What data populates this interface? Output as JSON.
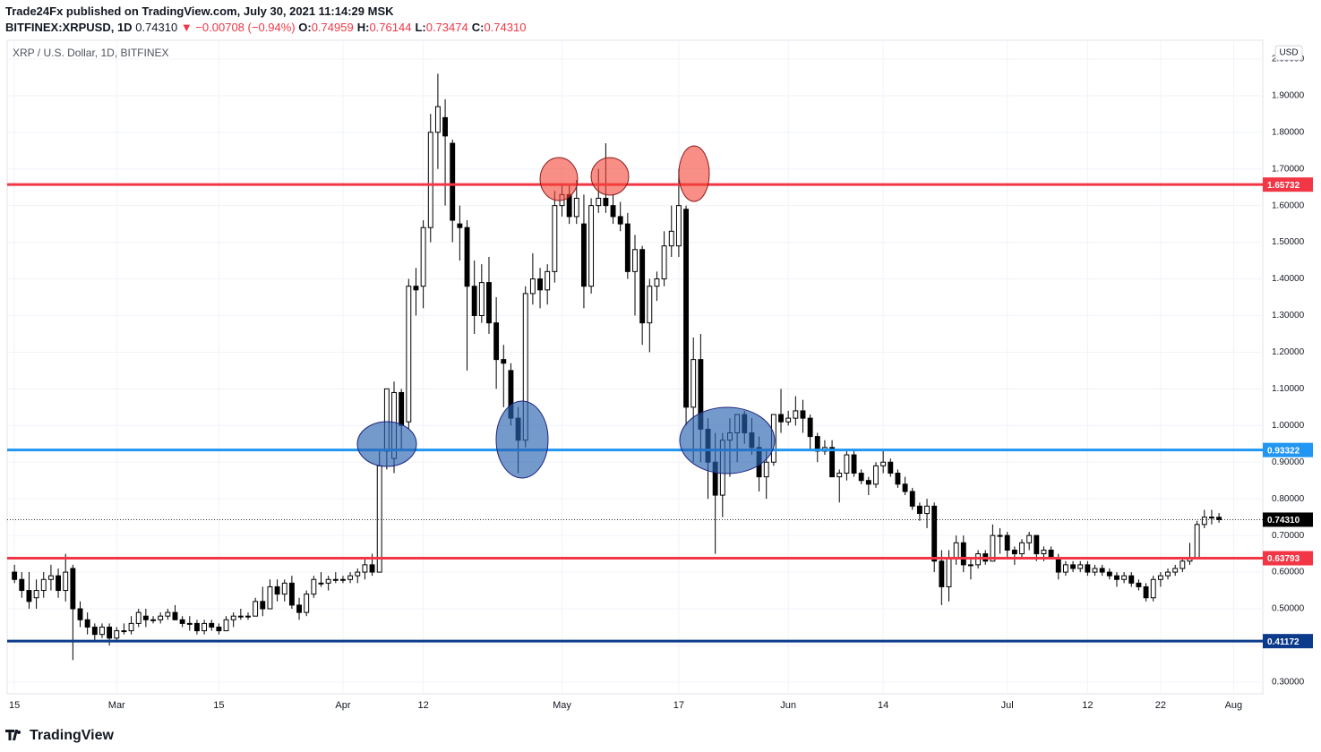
{
  "header": {
    "publisher": "Trade24Fx published on TradingView.com, July 30, 2021 11:14:29 MSK",
    "symbol": "BITFINEX:XRPUSD, 1D",
    "last": "0.74310",
    "arrow": "▼",
    "change": "−0.00708 (−0.94%)",
    "ohlc": [
      [
        "O:",
        "0.74959"
      ],
      [
        "H:",
        "0.76144"
      ],
      [
        "L:",
        "0.73474"
      ],
      [
        "C:",
        "0.74310"
      ]
    ]
  },
  "chart_data": {
    "type": "candlestick",
    "title": "XRP / U.S. Dollar, 1D, BITFINEX",
    "currency": "USD",
    "up_color": "#ffffff",
    "down_color": "#000000",
    "grid": true,
    "x": [
      "2021-02-15",
      "2021-02-16",
      "2021-02-17",
      "2021-02-18",
      "2021-02-19",
      "2021-02-20",
      "2021-02-21",
      "2021-02-22",
      "2021-02-23",
      "2021-02-24",
      "2021-02-25",
      "2021-02-26",
      "2021-02-27",
      "2021-02-28",
      "2021-03-01",
      "2021-03-02",
      "2021-03-03",
      "2021-03-04",
      "2021-03-05",
      "2021-03-06",
      "2021-03-07",
      "2021-03-08",
      "2021-03-09",
      "2021-03-10",
      "2021-03-11",
      "2021-03-12",
      "2021-03-13",
      "2021-03-14",
      "2021-03-15",
      "2021-03-16",
      "2021-03-17",
      "2021-03-18",
      "2021-03-19",
      "2021-03-20",
      "2021-03-21",
      "2021-03-22",
      "2021-03-23",
      "2021-03-24",
      "2021-03-25",
      "2021-03-26",
      "2021-03-27",
      "2021-03-28",
      "2021-03-29",
      "2021-03-30",
      "2021-03-31",
      "2021-04-01",
      "2021-04-02",
      "2021-04-03",
      "2021-04-04",
      "2021-04-05",
      "2021-04-06",
      "2021-04-07",
      "2021-04-08",
      "2021-04-09",
      "2021-04-10",
      "2021-04-11",
      "2021-04-12",
      "2021-04-13",
      "2021-04-14",
      "2021-04-15",
      "2021-04-16",
      "2021-04-17",
      "2021-04-18",
      "2021-04-19",
      "2021-04-20",
      "2021-04-21",
      "2021-04-22",
      "2021-04-23",
      "2021-04-24",
      "2021-04-25",
      "2021-04-26",
      "2021-04-27",
      "2021-04-28",
      "2021-04-29",
      "2021-04-30",
      "2021-05-01",
      "2021-05-02",
      "2021-05-03",
      "2021-05-04",
      "2021-05-05",
      "2021-05-06",
      "2021-05-07",
      "2021-05-08",
      "2021-05-09",
      "2021-05-10",
      "2021-05-11",
      "2021-05-12",
      "2021-05-13",
      "2021-05-14",
      "2021-05-15",
      "2021-05-16",
      "2021-05-17",
      "2021-05-18",
      "2021-05-19",
      "2021-05-20",
      "2021-05-21",
      "2021-05-22",
      "2021-05-23",
      "2021-05-24",
      "2021-05-25",
      "2021-05-26",
      "2021-05-27",
      "2021-05-28",
      "2021-05-29",
      "2021-05-30",
      "2021-05-31",
      "2021-06-01",
      "2021-06-02",
      "2021-06-03",
      "2021-06-04",
      "2021-06-05",
      "2021-06-06",
      "2021-06-07",
      "2021-06-08",
      "2021-06-09",
      "2021-06-10",
      "2021-06-11",
      "2021-06-12",
      "2021-06-13",
      "2021-06-14",
      "2021-06-15",
      "2021-06-16",
      "2021-06-17",
      "2021-06-18",
      "2021-06-19",
      "2021-06-20",
      "2021-06-21",
      "2021-06-22",
      "2021-06-23",
      "2021-06-24",
      "2021-06-25",
      "2021-06-26",
      "2021-06-27",
      "2021-06-28",
      "2021-06-29",
      "2021-06-30",
      "2021-07-01",
      "2021-07-02",
      "2021-07-03",
      "2021-07-04",
      "2021-07-05",
      "2021-07-06",
      "2021-07-07",
      "2021-07-08",
      "2021-07-09",
      "2021-07-10",
      "2021-07-11",
      "2021-07-12",
      "2021-07-13",
      "2021-07-14",
      "2021-07-15",
      "2021-07-16",
      "2021-07-17",
      "2021-07-18",
      "2021-07-19",
      "2021-07-20",
      "2021-07-21",
      "2021-07-22",
      "2021-07-23",
      "2021-07-24",
      "2021-07-25",
      "2021-07-26",
      "2021-07-27",
      "2021-07-28",
      "2021-07-29",
      "2021-07-30"
    ],
    "open": [
      0.6,
      0.58,
      0.55,
      0.53,
      0.55,
      0.58,
      0.59,
      0.55,
      0.61,
      0.5,
      0.47,
      0.45,
      0.43,
      0.45,
      0.42,
      0.44,
      0.44,
      0.46,
      0.48,
      0.47,
      0.47,
      0.48,
      0.49,
      0.47,
      0.46,
      0.46,
      0.44,
      0.46,
      0.45,
      0.44,
      0.47,
      0.48,
      0.48,
      0.48,
      0.52,
      0.5,
      0.56,
      0.54,
      0.57,
      0.51,
      0.49,
      0.54,
      0.57,
      0.57,
      0.58,
      0.58,
      0.58,
      0.59,
      0.6,
      0.62,
      0.6,
      0.93,
      0.91,
      1.09,
      1.01,
      1.38,
      1.38,
      1.54,
      1.8,
      1.84,
      1.77,
      1.55,
      1.54,
      1.38,
      1.3,
      1.39,
      1.28,
      1.18,
      1.15,
      1.02,
      0.96,
      1.36,
      1.4,
      1.37,
      1.42,
      1.6,
      1.63,
      1.57,
      1.55,
      1.38,
      1.6,
      1.62,
      1.6,
      1.57,
      1.55,
      1.42,
      1.48,
      1.28,
      1.38,
      1.4,
      1.49,
      1.49,
      1.59,
      1.05,
      1.18,
      0.99,
      0.9,
      0.81,
      0.96,
      0.98,
      1.03,
      0.98,
      0.94,
      0.86,
      0.9,
      1.03,
      1.01,
      1.02,
      1.04,
      1.02,
      0.97,
      0.93,
      0.94,
      0.86,
      0.87,
      0.92,
      0.87,
      0.85,
      0.84,
      0.89,
      0.9,
      0.87,
      0.84,
      0.82,
      0.78,
      0.76,
      0.78,
      0.63,
      0.56,
      0.64,
      0.68,
      0.62,
      0.62,
      0.65,
      0.63,
      0.7,
      0.7,
      0.66,
      0.65,
      0.68,
      0.7,
      0.65,
      0.66,
      0.64,
      0.6,
      0.62,
      0.61,
      0.62,
      0.6,
      0.61,
      0.6,
      0.59,
      0.58,
      0.59,
      0.57,
      0.56,
      0.53,
      0.58,
      0.59,
      0.6,
      0.61,
      0.63,
      0.64,
      0.73,
      0.75,
      0.74959
    ],
    "high": [
      0.62,
      0.6,
      0.6,
      0.58,
      0.6,
      0.62,
      0.61,
      0.65,
      0.62,
      0.52,
      0.49,
      0.46,
      0.46,
      0.46,
      0.45,
      0.46,
      0.48,
      0.5,
      0.5,
      0.48,
      0.49,
      0.5,
      0.51,
      0.48,
      0.48,
      0.47,
      0.47,
      0.47,
      0.46,
      0.48,
      0.49,
      0.5,
      0.49,
      0.53,
      0.56,
      0.58,
      0.58,
      0.58,
      0.59,
      0.53,
      0.55,
      0.59,
      0.6,
      0.59,
      0.6,
      0.59,
      0.6,
      0.61,
      0.64,
      0.65,
      0.93,
      1.1,
      1.12,
      1.1,
      1.4,
      1.43,
      1.56,
      1.85,
      1.96,
      1.89,
      1.78,
      1.6,
      1.56,
      1.45,
      1.44,
      1.46,
      1.35,
      1.22,
      1.17,
      1.05,
      1.38,
      1.47,
      1.43,
      1.44,
      1.64,
      1.66,
      1.66,
      1.67,
      1.63,
      1.62,
      1.7,
      1.77,
      1.63,
      1.61,
      1.58,
      1.52,
      1.49,
      1.4,
      1.42,
      1.53,
      1.6,
      1.7,
      1.6,
      1.24,
      1.25,
      1.02,
      0.98,
      0.98,
      1.02,
      1.03,
      1.04,
      1.02,
      0.97,
      0.93,
      1.03,
      1.1,
      1.04,
      1.08,
      1.07,
      1.03,
      0.98,
      0.96,
      0.96,
      0.88,
      0.93,
      0.93,
      0.88,
      0.86,
      0.9,
      0.93,
      0.91,
      0.88,
      0.86,
      0.83,
      0.79,
      0.8,
      0.79,
      0.66,
      0.66,
      0.7,
      0.7,
      0.64,
      0.66,
      0.66,
      0.73,
      0.72,
      0.71,
      0.67,
      0.69,
      0.71,
      0.7,
      0.67,
      0.67,
      0.65,
      0.63,
      0.63,
      0.63,
      0.63,
      0.62,
      0.62,
      0.61,
      0.6,
      0.6,
      0.6,
      0.58,
      0.57,
      0.59,
      0.6,
      0.61,
      0.62,
      0.64,
      0.68,
      0.74,
      0.77,
      0.77,
      0.76144
    ],
    "low": [
      0.57,
      0.53,
      0.5,
      0.5,
      0.53,
      0.55,
      0.53,
      0.52,
      0.36,
      0.45,
      0.43,
      0.41,
      0.42,
      0.4,
      0.41,
      0.43,
      0.43,
      0.45,
      0.45,
      0.46,
      0.46,
      0.47,
      0.47,
      0.45,
      0.44,
      0.43,
      0.43,
      0.44,
      0.43,
      0.44,
      0.45,
      0.47,
      0.47,
      0.48,
      0.48,
      0.5,
      0.52,
      0.52,
      0.5,
      0.47,
      0.48,
      0.53,
      0.56,
      0.55,
      0.57,
      0.57,
      0.57,
      0.57,
      0.58,
      0.59,
      0.6,
      0.88,
      0.87,
      0.93,
      0.99,
      1.3,
      1.32,
      1.5,
      1.7,
      1.6,
      1.5,
      1.45,
      1.15,
      1.25,
      1.28,
      1.25,
      1.1,
      1.05,
      1.0,
      0.87,
      0.94,
      1.33,
      1.32,
      1.33,
      1.39,
      1.57,
      1.55,
      1.55,
      1.32,
      1.36,
      1.58,
      1.58,
      1.55,
      1.53,
      1.4,
      1.3,
      1.22,
      1.2,
      1.34,
      1.38,
      1.46,
      1.46,
      1.0,
      0.9,
      0.9,
      0.8,
      0.65,
      0.75,
      0.86,
      0.9,
      0.95,
      0.92,
      0.82,
      0.8,
      0.89,
      0.98,
      1.0,
      1.0,
      0.98,
      0.93,
      0.9,
      0.92,
      0.86,
      0.79,
      0.85,
      0.86,
      0.84,
      0.81,
      0.83,
      0.87,
      0.86,
      0.83,
      0.81,
      0.77,
      0.74,
      0.72,
      0.6,
      0.51,
      0.52,
      0.62,
      0.6,
      0.58,
      0.61,
      0.62,
      0.63,
      0.65,
      0.64,
      0.62,
      0.64,
      0.66,
      0.63,
      0.63,
      0.64,
      0.58,
      0.59,
      0.6,
      0.6,
      0.59,
      0.59,
      0.59,
      0.58,
      0.56,
      0.57,
      0.56,
      0.55,
      0.52,
      0.52,
      0.56,
      0.58,
      0.59,
      0.6,
      0.62,
      0.64,
      0.72,
      0.73,
      0.73474
    ],
    "close": [
      0.58,
      0.55,
      0.52,
      0.55,
      0.58,
      0.59,
      0.55,
      0.6,
      0.5,
      0.47,
      0.45,
      0.43,
      0.45,
      0.42,
      0.44,
      0.44,
      0.46,
      0.49,
      0.47,
      0.47,
      0.48,
      0.49,
      0.47,
      0.46,
      0.46,
      0.44,
      0.46,
      0.45,
      0.44,
      0.47,
      0.48,
      0.48,
      0.48,
      0.52,
      0.5,
      0.56,
      0.54,
      0.57,
      0.51,
      0.49,
      0.54,
      0.58,
      0.57,
      0.58,
      0.58,
      0.58,
      0.59,
      0.6,
      0.62,
      0.6,
      0.89,
      1.1,
      1.09,
      1.0,
      1.38,
      1.37,
      1.54,
      1.8,
      1.87,
      1.79,
      1.56,
      1.54,
      1.38,
      1.3,
      1.39,
      1.28,
      1.18,
      1.17,
      1.02,
      0.96,
      1.36,
      1.4,
      1.37,
      1.42,
      1.6,
      1.63,
      1.57,
      1.62,
      1.38,
      1.6,
      1.62,
      1.6,
      1.57,
      1.55,
      1.42,
      1.48,
      1.28,
      1.38,
      1.4,
      1.49,
      1.53,
      1.6,
      1.05,
      1.18,
      0.99,
      0.9,
      0.81,
      0.96,
      0.98,
      1.03,
      0.98,
      0.94,
      0.86,
      0.9,
      1.03,
      1.01,
      1.02,
      1.04,
      1.02,
      0.97,
      0.93,
      0.94,
      0.86,
      0.87,
      0.92,
      0.87,
      0.85,
      0.84,
      0.89,
      0.9,
      0.87,
      0.84,
      0.82,
      0.78,
      0.76,
      0.78,
      0.63,
      0.56,
      0.64,
      0.68,
      0.62,
      0.62,
      0.65,
      0.63,
      0.7,
      0.7,
      0.66,
      0.65,
      0.68,
      0.7,
      0.65,
      0.66,
      0.64,
      0.6,
      0.62,
      0.61,
      0.62,
      0.6,
      0.61,
      0.6,
      0.59,
      0.58,
      0.59,
      0.57,
      0.56,
      0.53,
      0.58,
      0.59,
      0.6,
      0.61,
      0.63,
      0.64,
      0.73,
      0.75,
      0.75,
      0.7431
    ],
    "xlim": [
      "2021-02-14",
      "2021-08-05"
    ],
    "xticks": [
      {
        "value": "2021-02-15",
        "label": "15"
      },
      {
        "value": "2021-03-01",
        "label": "Mar"
      },
      {
        "value": "2021-03-15",
        "label": "15"
      },
      {
        "value": "2021-04-01",
        "label": "Apr"
      },
      {
        "value": "2021-04-12",
        "label": "12"
      },
      {
        "value": "2021-05-01",
        "label": "May"
      },
      {
        "value": "2021-05-17",
        "label": "17"
      },
      {
        "value": "2021-06-01",
        "label": "Jun"
      },
      {
        "value": "2021-06-14",
        "label": "14"
      },
      {
        "value": "2021-07-01",
        "label": "Jul"
      },
      {
        "value": "2021-07-12",
        "label": "12"
      },
      {
        "value": "2021-07-22",
        "label": "22"
      },
      {
        "value": "2021-08-01",
        "label": "Aug"
      }
    ],
    "ylim": [
      0.268,
      2.051
    ],
    "yticks": [
      {
        "value": 0.3,
        "label": "0.30000"
      },
      {
        "value": 0.4,
        "label": "0.40000"
      },
      {
        "value": 0.5,
        "label": "0.50000"
      },
      {
        "value": 0.6,
        "label": "0.60000"
      },
      {
        "value": 0.7,
        "label": "0.70000"
      },
      {
        "value": 0.8,
        "label": "0.80000"
      },
      {
        "value": 0.9,
        "label": "0.90000"
      },
      {
        "value": 1.0,
        "label": "1.00000"
      },
      {
        "value": 1.1,
        "label": "1.10000"
      },
      {
        "value": 1.2,
        "label": "1.20000"
      },
      {
        "value": 1.3,
        "label": "1.30000"
      },
      {
        "value": 1.4,
        "label": "1.40000"
      },
      {
        "value": 1.5,
        "label": "1.50000"
      },
      {
        "value": 1.6,
        "label": "1.60000"
      },
      {
        "value": 1.7,
        "label": "1.70000"
      },
      {
        "value": 1.8,
        "label": "1.80000"
      },
      {
        "value": 1.9,
        "label": "1.90000"
      },
      {
        "value": 2.0,
        "label": "2.00000"
      }
    ],
    "levels": [
      {
        "value": 1.65732,
        "color": "#f23645"
      },
      {
        "value": 0.93322,
        "color": "#2196f3"
      },
      {
        "value": 0.63793,
        "color": "#f23645"
      },
      {
        "value": 0.41172,
        "color": "#0d3b8c"
      }
    ],
    "last_price": {
      "value": 0.7431,
      "label": "0.74310",
      "color": "#000000"
    }
  },
  "footer": {
    "brand": "TradingView"
  }
}
